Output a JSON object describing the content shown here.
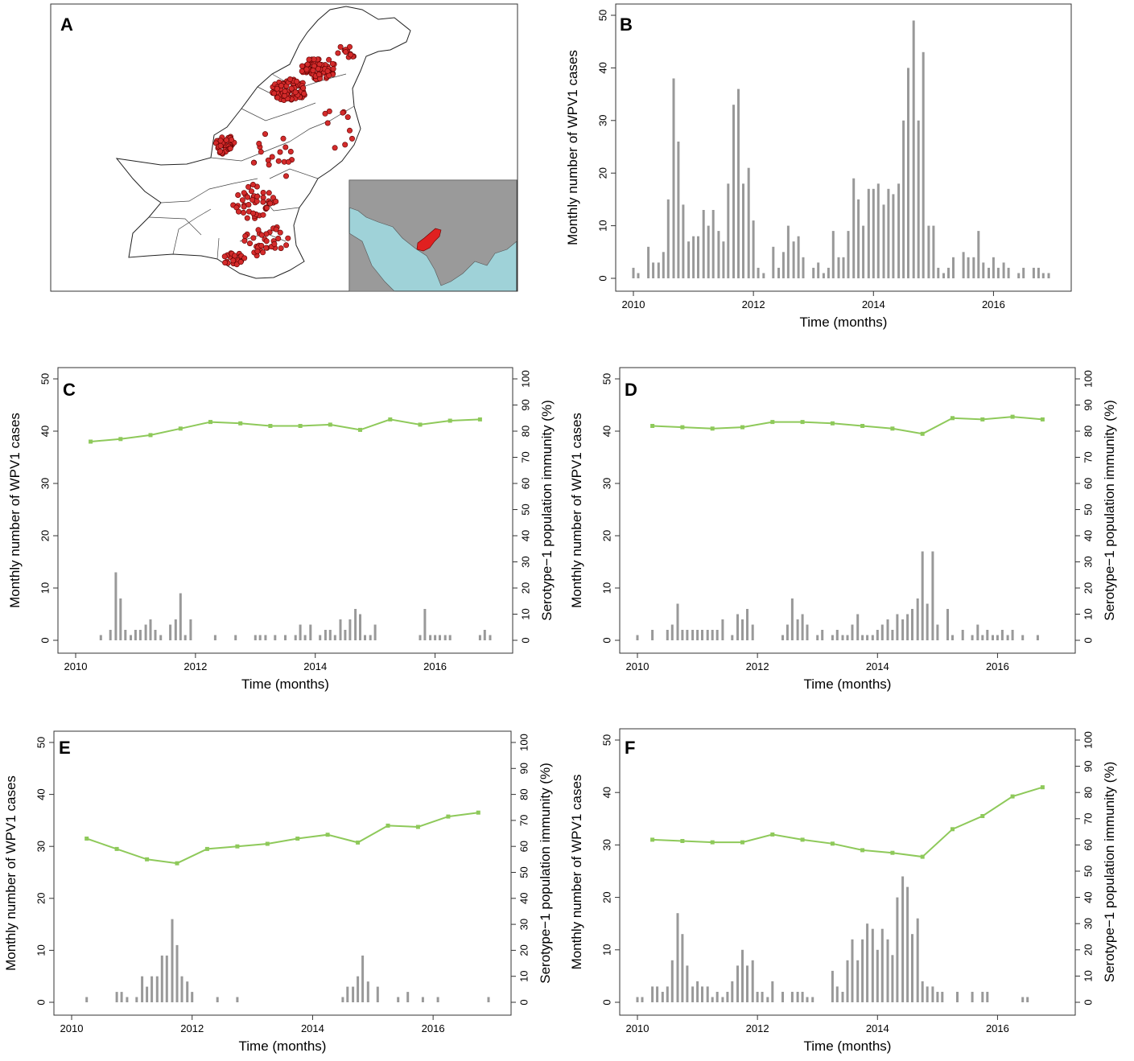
{
  "figure": {
    "panel_letters": {
      "A": "A",
      "B": "B",
      "C": "C",
      "D": "D",
      "E": "E",
      "F": "F"
    }
  },
  "colors": {
    "bar": "#999999",
    "immunity_line": "#8ec95a",
    "point_red": "#d42b2b",
    "map_land": "#9a9a9a",
    "map_sea": "#9fd2d8",
    "pakistan_highlight": "#e02020"
  },
  "map_panel": {
    "inset_present": true
  },
  "chart_data": [
    {
      "panel": "B",
      "type": "bar",
      "xlabel": "Time (months)",
      "ylabel": "Monthly number of WPV1 cases",
      "xlim": [
        2010,
        2017
      ],
      "ylim": [
        0,
        50
      ],
      "xticks": [
        "2010",
        "2012",
        "2014",
        "2016"
      ],
      "yticks": [
        "0",
        "10",
        "20",
        "30",
        "40",
        "50"
      ],
      "bars_x": [
        2010.0,
        2010.08,
        2010.25,
        2010.33,
        2010.42,
        2010.5,
        2010.58,
        2010.67,
        2010.75,
        2010.83,
        2010.92,
        2011.0,
        2011.08,
        2011.17,
        2011.25,
        2011.33,
        2011.42,
        2011.5,
        2011.58,
        2011.67,
        2011.75,
        2011.83,
        2011.92,
        2012.0,
        2012.08,
        2012.17,
        2012.33,
        2012.42,
        2012.5,
        2012.58,
        2012.67,
        2012.75,
        2012.83,
        2013.0,
        2013.08,
        2013.17,
        2013.25,
        2013.33,
        2013.42,
        2013.5,
        2013.58,
        2013.67,
        2013.75,
        2013.83,
        2013.92,
        2014.0,
        2014.08,
        2014.17,
        2014.25,
        2014.33,
        2014.42,
        2014.5,
        2014.58,
        2014.67,
        2014.75,
        2014.83,
        2014.92,
        2015.0,
        2015.08,
        2015.17,
        2015.25,
        2015.33,
        2015.5,
        2015.58,
        2015.67,
        2015.75,
        2015.83,
        2015.92,
        2016.0,
        2016.08,
        2016.17,
        2016.25,
        2016.42,
        2016.5,
        2016.67,
        2016.75,
        2016.83,
        2016.92
      ],
      "values": [
        2,
        1,
        6,
        3,
        3,
        5,
        15,
        38,
        26,
        14,
        7,
        8,
        8,
        13,
        10,
        13,
        9,
        7,
        18,
        33,
        36,
        18,
        21,
        11,
        2,
        1,
        6,
        2,
        5,
        10,
        7,
        8,
        4,
        2,
        3,
        1,
        2,
        9,
        4,
        4,
        9,
        19,
        15,
        10,
        17,
        17,
        18,
        14,
        17,
        16,
        18,
        30,
        40,
        49,
        30,
        43,
        10,
        10,
        2,
        1,
        2,
        4,
        5,
        4,
        4,
        9,
        3,
        2,
        4,
        2,
        3,
        2,
        1,
        2,
        2,
        2,
        1,
        1
      ]
    },
    {
      "panel": "C",
      "type": "bar+line",
      "xlabel": "Time (months)",
      "ylabel": "Monthly number of WPV1 cases",
      "y2label": "Serotype−1 population immunity (%)",
      "xlim": [
        2010,
        2017
      ],
      "ylim": [
        0,
        50
      ],
      "y2lim": [
        0,
        100
      ],
      "xticks": [
        "2010",
        "2012",
        "2014",
        "2016"
      ],
      "yticks": [
        "0",
        "10",
        "20",
        "30",
        "40",
        "50"
      ],
      "y2ticks": [
        "0",
        "10",
        "20",
        "30",
        "40",
        "50",
        "60",
        "70",
        "80",
        "90",
        "100"
      ],
      "bars_x": [
        2010.42,
        2010.58,
        2010.67,
        2010.75,
        2010.83,
        2010.92,
        2011.0,
        2011.08,
        2011.17,
        2011.25,
        2011.33,
        2011.42,
        2011.58,
        2011.67,
        2011.75,
        2011.83,
        2011.92,
        2012.33,
        2012.67,
        2013.0,
        2013.08,
        2013.17,
        2013.33,
        2013.5,
        2013.67,
        2013.75,
        2013.83,
        2013.92,
        2014.08,
        2014.17,
        2014.25,
        2014.33,
        2014.42,
        2014.5,
        2014.58,
        2014.67,
        2014.75,
        2014.83,
        2014.92,
        2015.0,
        2015.75,
        2015.83,
        2015.92,
        2016.0,
        2016.08,
        2016.17,
        2016.25,
        2016.75,
        2016.83,
        2016.92
      ],
      "values": [
        1,
        2,
        13,
        8,
        2,
        1,
        2,
        2,
        3,
        4,
        2,
        1,
        3,
        4,
        9,
        1,
        4,
        1,
        1,
        1,
        1,
        1,
        1,
        1,
        1,
        3,
        1,
        3,
        1,
        2,
        2,
        1,
        4,
        2,
        4,
        6,
        5,
        1,
        1,
        3,
        1,
        6,
        1,
        1,
        1,
        1,
        1,
        1,
        2,
        1
      ],
      "immunity_x": [
        2010.25,
        2010.75,
        2011.25,
        2011.75,
        2012.25,
        2012.75,
        2013.25,
        2013.75,
        2014.25,
        2014.75,
        2015.25,
        2015.75,
        2016.25,
        2016.75
      ],
      "immunity": [
        76,
        77,
        78.5,
        81,
        83.5,
        83,
        82,
        82,
        82.5,
        80.5,
        84.5,
        82.5,
        84,
        84.5
      ]
    },
    {
      "panel": "D",
      "type": "bar+line",
      "xlabel": "Time (months)",
      "ylabel": "Monthly number of WPV1 cases",
      "y2label": "Serotype−1 population immunity (%)",
      "xlim": [
        2010,
        2017
      ],
      "ylim": [
        0,
        50
      ],
      "y2lim": [
        0,
        100
      ],
      "xticks": [
        "2010",
        "2012",
        "2014",
        "2016"
      ],
      "yticks": [
        "0",
        "10",
        "20",
        "30",
        "40",
        "50"
      ],
      "y2ticks": [
        "0",
        "10",
        "20",
        "30",
        "40",
        "50",
        "60",
        "70",
        "80",
        "90",
        "100"
      ],
      "bars_x": [
        2010.0,
        2010.25,
        2010.5,
        2010.58,
        2010.67,
        2010.75,
        2010.83,
        2010.92,
        2011.0,
        2011.08,
        2011.17,
        2011.25,
        2011.33,
        2011.42,
        2011.58,
        2011.67,
        2011.75,
        2011.83,
        2011.92,
        2012.42,
        2012.5,
        2012.58,
        2012.67,
        2012.75,
        2012.83,
        2013.0,
        2013.08,
        2013.25,
        2013.33,
        2013.42,
        2013.5,
        2013.58,
        2013.67,
        2013.75,
        2013.83,
        2013.92,
        2014.0,
        2014.08,
        2014.17,
        2014.25,
        2014.33,
        2014.42,
        2014.5,
        2014.58,
        2014.67,
        2014.75,
        2014.83,
        2014.92,
        2015.0,
        2015.17,
        2015.25,
        2015.42,
        2015.58,
        2015.67,
        2015.75,
        2015.83,
        2015.92,
        2016.0,
        2016.08,
        2016.17,
        2016.25,
        2016.42,
        2016.67
      ],
      "values": [
        1,
        2,
        2,
        3,
        7,
        2,
        2,
        2,
        2,
        2,
        2,
        2,
        2,
        4,
        1,
        5,
        4,
        6,
        3,
        1,
        3,
        8,
        4,
        5,
        3,
        1,
        2,
        1,
        2,
        1,
        1,
        3,
        5,
        1,
        1,
        1,
        2,
        3,
        4,
        2,
        5,
        4,
        5,
        6,
        8,
        17,
        7,
        17,
        3,
        6,
        1,
        2,
        1,
        3,
        1,
        2,
        1,
        1,
        2,
        1,
        2,
        1,
        1
      ],
      "immunity_x": [
        2010.25,
        2010.75,
        2011.25,
        2011.75,
        2012.25,
        2012.75,
        2013.25,
        2013.75,
        2014.25,
        2014.75,
        2015.25,
        2015.75,
        2016.25,
        2016.75
      ],
      "immunity": [
        82,
        81.5,
        81,
        81.5,
        83.5,
        83.5,
        83,
        82,
        81,
        79,
        85,
        84.5,
        85.5,
        84.5
      ]
    },
    {
      "panel": "E",
      "type": "bar+line",
      "xlabel": "Time (months)",
      "ylabel": "Monthly number of WPV1 cases",
      "y2label": "Serotype−1 population immunity (%)",
      "xlim": [
        2010,
        2017
      ],
      "ylim": [
        0,
        50
      ],
      "y2lim": [
        0,
        100
      ],
      "xticks": [
        "2010",
        "2012",
        "2014",
        "2016"
      ],
      "yticks": [
        "0",
        "10",
        "20",
        "30",
        "40",
        "50"
      ],
      "y2ticks": [
        "0",
        "10",
        "20",
        "30",
        "40",
        "50",
        "60",
        "70",
        "80",
        "90",
        "100"
      ],
      "bars_x": [
        2010.25,
        2010.75,
        2010.83,
        2010.92,
        2011.08,
        2011.17,
        2011.25,
        2011.33,
        2011.42,
        2011.5,
        2011.58,
        2011.67,
        2011.75,
        2011.83,
        2011.92,
        2012.0,
        2012.42,
        2012.75,
        2014.5,
        2014.58,
        2014.67,
        2014.75,
        2014.83,
        2014.92,
        2015.08,
        2015.42,
        2015.58,
        2015.83,
        2016.08,
        2016.92
      ],
      "values": [
        1,
        2,
        2,
        1,
        1,
        5,
        3,
        5,
        5,
        9,
        9,
        16,
        11,
        5,
        4,
        2,
        1,
        1,
        1,
        3,
        3,
        5,
        9,
        4,
        3,
        1,
        2,
        1,
        1,
        1
      ],
      "immunity_x": [
        2010.25,
        2010.75,
        2011.25,
        2011.75,
        2012.25,
        2012.75,
        2013.25,
        2013.75,
        2014.25,
        2014.75,
        2015.25,
        2015.75,
        2016.25,
        2016.75
      ],
      "immunity": [
        63,
        59,
        55,
        53.5,
        59,
        60,
        61,
        63,
        64.5,
        61.5,
        68,
        67.5,
        71.5,
        73
      ]
    },
    {
      "panel": "F",
      "type": "bar+line",
      "xlabel": "Time (months)",
      "ylabel": "Monthly number of WPV1 cases",
      "y2label": "Serotype−1 population immunity (%)",
      "xlim": [
        2010,
        2017
      ],
      "ylim": [
        0,
        50
      ],
      "y2lim": [
        0,
        100
      ],
      "xticks": [
        "2010",
        "2012",
        "2014",
        "2016"
      ],
      "yticks": [
        "0",
        "10",
        "20",
        "30",
        "40",
        "50"
      ],
      "y2ticks": [
        "0",
        "10",
        "20",
        "30",
        "40",
        "50",
        "60",
        "70",
        "80",
        "90",
        "100"
      ],
      "bars_x": [
        2010.0,
        2010.08,
        2010.25,
        2010.33,
        2010.42,
        2010.5,
        2010.58,
        2010.67,
        2010.75,
        2010.83,
        2010.92,
        2011.0,
        2011.08,
        2011.17,
        2011.25,
        2011.33,
        2011.42,
        2011.5,
        2011.58,
        2011.67,
        2011.75,
        2011.83,
        2011.92,
        2012.0,
        2012.08,
        2012.17,
        2012.25,
        2012.42,
        2012.58,
        2012.67,
        2012.75,
        2012.83,
        2012.92,
        2013.25,
        2013.33,
        2013.42,
        2013.5,
        2013.58,
        2013.67,
        2013.75,
        2013.83,
        2013.92,
        2014.0,
        2014.08,
        2014.17,
        2014.25,
        2014.33,
        2014.42,
        2014.5,
        2014.58,
        2014.67,
        2014.75,
        2014.83,
        2014.92,
        2015.0,
        2015.08,
        2015.33,
        2015.58,
        2015.75,
        2015.83,
        2016.42,
        2016.5
      ],
      "values": [
        1,
        1,
        3,
        3,
        2,
        3,
        8,
        17,
        13,
        7,
        3,
        4,
        3,
        3,
        1,
        2,
        1,
        2,
        4,
        7,
        10,
        7,
        8,
        2,
        2,
        1,
        4,
        2,
        2,
        2,
        2,
        1,
        1,
        6,
        3,
        2,
        8,
        12,
        8,
        12,
        15,
        14,
        10,
        14,
        12,
        9,
        20,
        24,
        22,
        13,
        16,
        4,
        3,
        3,
        2,
        2,
        2,
        2,
        2,
        2,
        1,
        1
      ],
      "immunity_x": [
        2010.25,
        2010.75,
        2011.25,
        2011.75,
        2012.25,
        2012.75,
        2013.25,
        2013.75,
        2014.25,
        2014.75,
        2015.25,
        2015.75,
        2016.25,
        2016.75
      ],
      "immunity": [
        62,
        61.5,
        61,
        61,
        64,
        62,
        60.5,
        58,
        57,
        55.5,
        66,
        71,
        78.5,
        82
      ]
    }
  ]
}
